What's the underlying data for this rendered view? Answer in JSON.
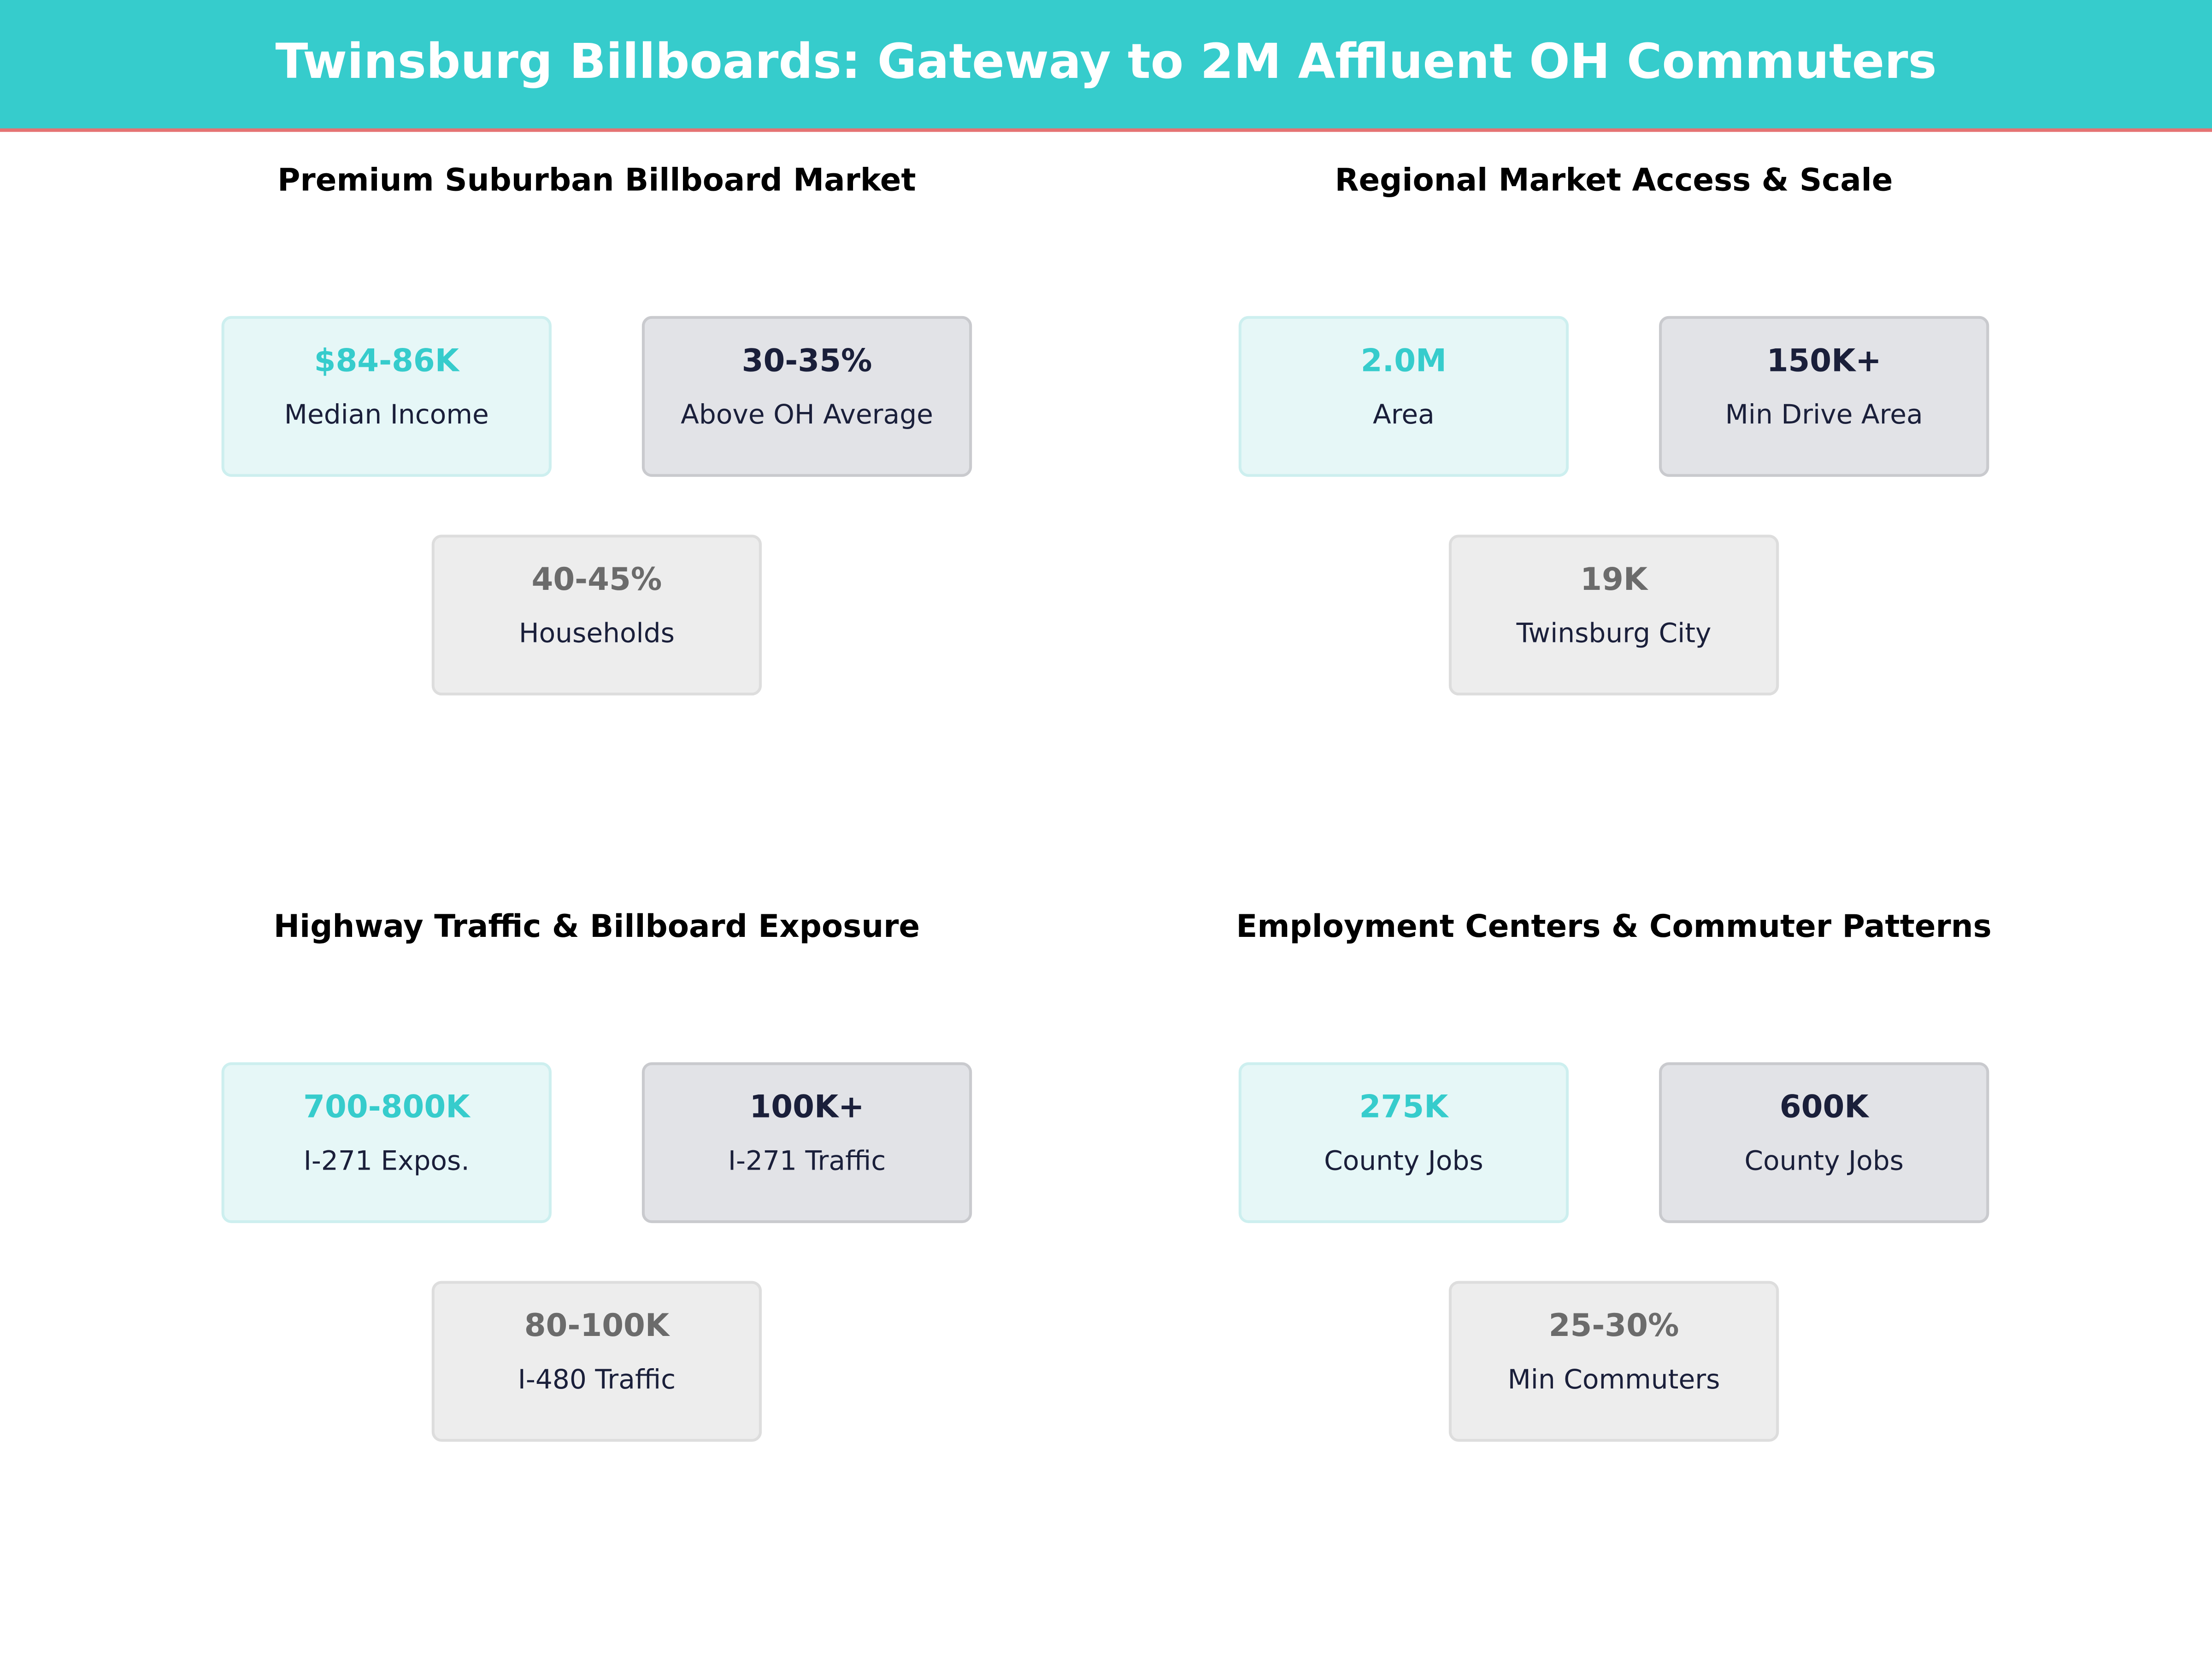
{
  "header": {
    "title": "Twinsburg Billboards: Gateway to 2M Affluent OH Commuters"
  },
  "panels": [
    {
      "title": "Premium Suburban Billboard Market",
      "cards": [
        {
          "value": "$84-86K",
          "label": "Median Income"
        },
        {
          "value": "30-35%",
          "label": "Above OH Average"
        },
        {
          "value": "40-45%",
          "label": "Households"
        }
      ]
    },
    {
      "title": "Regional Market Access & Scale",
      "cards": [
        {
          "value": "2.0M",
          "label": "Area"
        },
        {
          "value": "150K+",
          "label": "Min Drive Area"
        },
        {
          "value": "19K",
          "label": "Twinsburg City"
        }
      ]
    },
    {
      "title": "Highway Traffic & Billboard Exposure",
      "cards": [
        {
          "value": "700-800K",
          "label": "I-271 Expos."
        },
        {
          "value": "100K+",
          "label": "I-271 Traffic"
        },
        {
          "value": "80-100K",
          "label": "I-480 Traffic"
        }
      ]
    },
    {
      "title": "Employment Centers & Commuter Patterns",
      "cards": [
        {
          "value": "275K",
          "label": "County Jobs"
        },
        {
          "value": "600K",
          "label": "County Jobs"
        },
        {
          "value": "25-30%",
          "label": "Min Commuters"
        }
      ]
    }
  ]
}
